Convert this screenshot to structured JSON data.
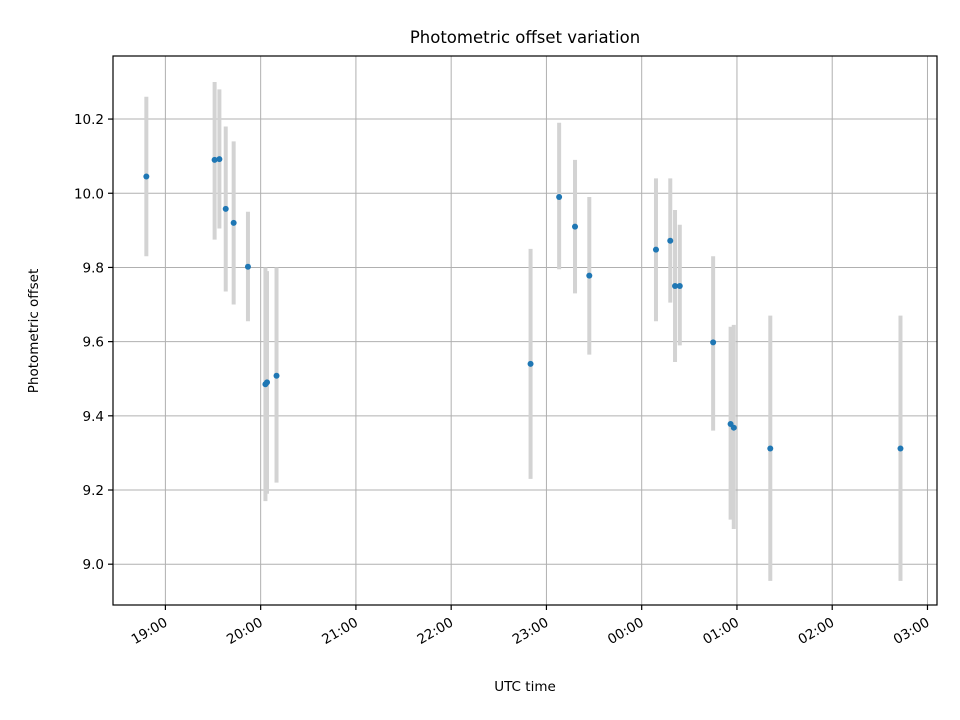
{
  "chart_data": {
    "type": "scatter",
    "title": "Photometric offset variation",
    "xlabel": "UTC time",
    "ylabel": "Photometric offset",
    "xlim": [
      "18:27",
      "03:06"
    ],
    "ylim": [
      8.89,
      10.37
    ],
    "grid": true,
    "x_ticks": [
      "19:00",
      "20:00",
      "21:00",
      "22:00",
      "23:00",
      "00:00",
      "01:00",
      "02:00",
      "03:00"
    ],
    "y_ticks": [
      "9.0",
      "9.2",
      "9.4",
      "9.6",
      "9.8",
      "10.0",
      "10.2"
    ],
    "y_tick_values": [
      9.0,
      9.2,
      9.4,
      9.6,
      9.8,
      10.0,
      10.2
    ],
    "colors": {
      "points": "#1f77b4",
      "error_bars": "#d3d3d3",
      "grid": "#b0b0b0"
    },
    "points": [
      {
        "x": "18:48",
        "y": 10.045,
        "ylo": 9.83,
        "yhi": 10.26
      },
      {
        "x": "19:31",
        "y": 10.09,
        "ylo": 9.875,
        "yhi": 10.3
      },
      {
        "x": "19:34",
        "y": 10.092,
        "ylo": 9.905,
        "yhi": 10.28
      },
      {
        "x": "19:38",
        "y": 9.958,
        "ylo": 9.735,
        "yhi": 10.18
      },
      {
        "x": "19:43",
        "y": 9.92,
        "ylo": 9.7,
        "yhi": 10.14
      },
      {
        "x": "19:52",
        "y": 9.802,
        "ylo": 9.655,
        "yhi": 9.95
      },
      {
        "x": "20:03",
        "y": 9.485,
        "ylo": 9.17,
        "yhi": 9.8
      },
      {
        "x": "20:04",
        "y": 9.49,
        "ylo": 9.19,
        "yhi": 9.79
      },
      {
        "x": "20:10",
        "y": 9.508,
        "ylo": 9.22,
        "yhi": 9.8
      },
      {
        "x": "22:50",
        "y": 9.54,
        "ylo": 9.23,
        "yhi": 9.85
      },
      {
        "x": "23:08",
        "y": 9.99,
        "ylo": 9.795,
        "yhi": 10.19
      },
      {
        "x": "23:18",
        "y": 9.91,
        "ylo": 9.73,
        "yhi": 10.09
      },
      {
        "x": "23:27",
        "y": 9.778,
        "ylo": 9.565,
        "yhi": 9.99
      },
      {
        "x": "00:09",
        "y": 9.848,
        "ylo": 9.655,
        "yhi": 10.04
      },
      {
        "x": "00:18",
        "y": 9.872,
        "ylo": 9.705,
        "yhi": 10.04
      },
      {
        "x": "00:21",
        "y": 9.75,
        "ylo": 9.545,
        "yhi": 9.955
      },
      {
        "x": "00:24",
        "y": 9.75,
        "ylo": 9.59,
        "yhi": 9.915
      },
      {
        "x": "00:45",
        "y": 9.598,
        "ylo": 9.36,
        "yhi": 9.83
      },
      {
        "x": "00:56",
        "y": 9.378,
        "ylo": 9.12,
        "yhi": 9.64
      },
      {
        "x": "00:58",
        "y": 9.368,
        "ylo": 9.095,
        "yhi": 9.645
      },
      {
        "x": "01:21",
        "y": 9.312,
        "ylo": 8.955,
        "yhi": 9.67
      },
      {
        "x": "02:43",
        "y": 9.312,
        "ylo": 8.955,
        "yhi": 9.67
      }
    ]
  }
}
